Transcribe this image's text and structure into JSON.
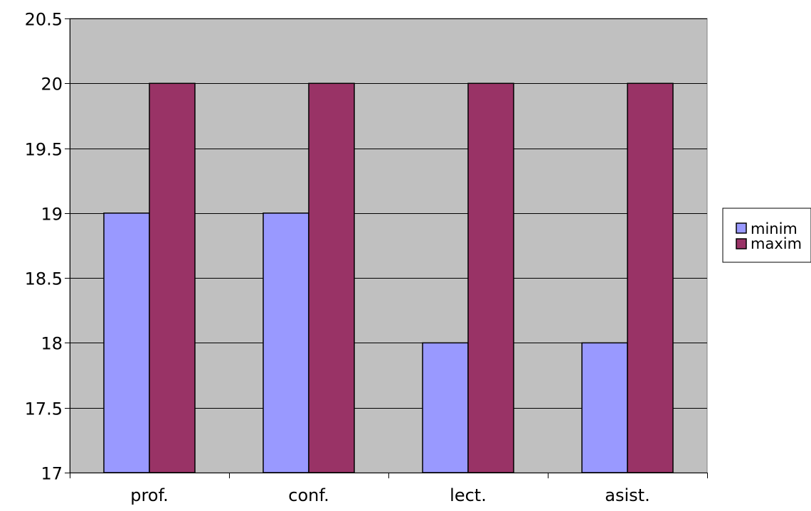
{
  "chart_data": {
    "type": "bar",
    "categories": [
      "prof.",
      "conf.",
      "lect.",
      "asist."
    ],
    "series": [
      {
        "name": "minim",
        "values": [
          19,
          19,
          18,
          18
        ],
        "color": "#9999ff"
      },
      {
        "name": "maxim",
        "values": [
          20,
          20,
          20,
          20
        ],
        "color": "#993366"
      }
    ],
    "ylim": [
      17,
      20.5
    ],
    "yticks": [
      "17",
      "17.5",
      "18",
      "18.5",
      "19",
      "19.5",
      "20",
      "20.5"
    ],
    "grid": true,
    "legend_position": "right",
    "title": "",
    "xlabel": "",
    "ylabel": "",
    "plot_background": "#c0c0c0"
  }
}
